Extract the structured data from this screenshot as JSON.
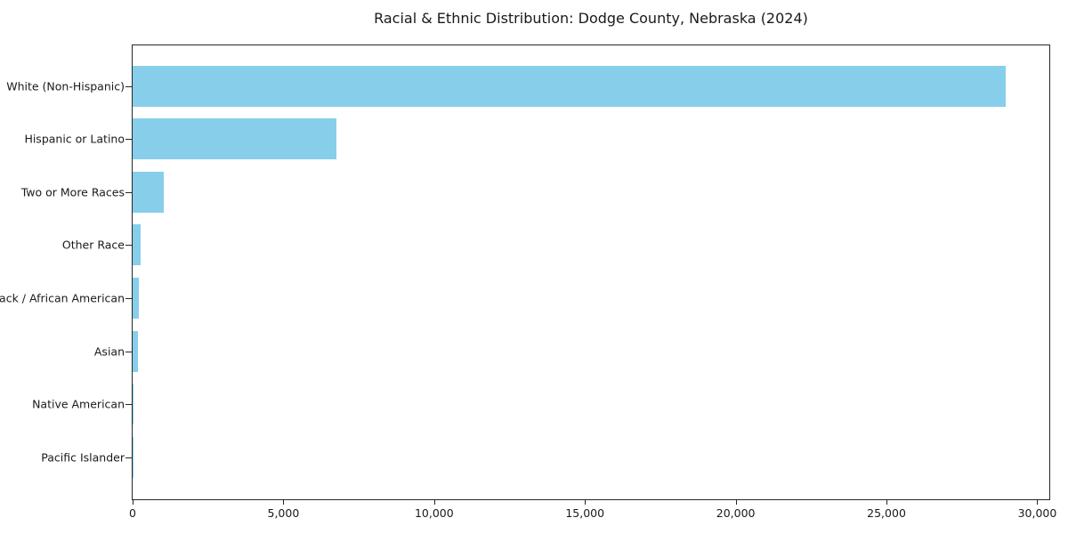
{
  "window": {
    "background_color": "#ffffff",
    "text_color": "#1a1a1a",
    "spine_color": "#262626"
  },
  "chart_data": {
    "type": "bar",
    "orientation": "horizontal",
    "title": "Racial & Ethnic Distribution: Dodge County, Nebraska (2024)",
    "categories": [
      "White (Non-Hispanic)",
      "Hispanic or Latino",
      "Two or More Races",
      "Other Race",
      "Black / African American",
      "Asian",
      "Native American",
      "Pacific Islander"
    ],
    "values": [
      28950,
      6745,
      1040,
      275,
      205,
      170,
      40,
      15
    ],
    "bar_color": "#87CEEB",
    "xlabel": "",
    "ylabel": "",
    "xlim": [
      0,
      30400
    ],
    "xticks": {
      "values": [
        0,
        5000,
        10000,
        15000,
        20000,
        25000,
        30000
      ],
      "labels": [
        "0",
        "5,000",
        "10,000",
        "15,000",
        "20,000",
        "25,000",
        "30,000"
      ]
    },
    "grid": false,
    "legend_position": "none",
    "value_labels_shown": false
  }
}
